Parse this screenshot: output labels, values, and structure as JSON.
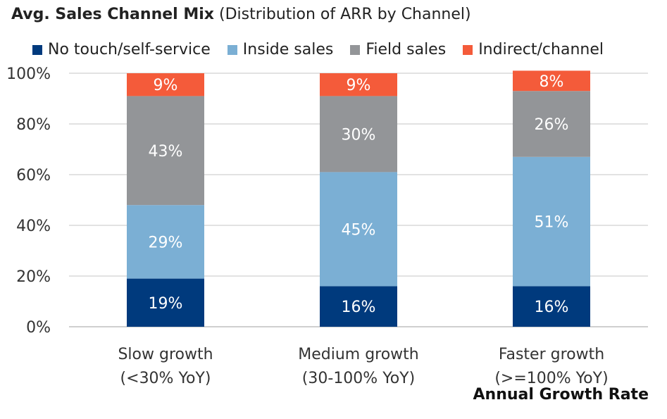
{
  "header": {
    "title_main": "Avg. Sales Channel Mix",
    "title_sub": "(Distribution of ARR by Channel)"
  },
  "chart_data": {
    "type": "bar",
    "stacked": true,
    "title": "Avg. Sales Channel Mix (Distribution of ARR by Channel)",
    "xlabel": "Annual Growth Rate",
    "ylabel": "",
    "ylim": [
      0,
      100
    ],
    "yticks": [
      "0%",
      "20%",
      "40%",
      "60%",
      "80%",
      "100%"
    ],
    "legend_position": "top",
    "grid": true,
    "categories": [
      [
        "Slow growth",
        "(<30% YoY)"
      ],
      [
        "Medium growth",
        "(30-100% YoY)"
      ],
      [
        "Faster growth",
        "(>=100% YoY)"
      ]
    ],
    "series": [
      {
        "name": "No touch/self-service",
        "color": "#003A7D",
        "values": [
          19,
          16,
          16
        ],
        "labels": [
          "19%",
          "16%",
          "16%"
        ]
      },
      {
        "name": "Inside sales",
        "color": "#7BAFD4",
        "values": [
          29,
          45,
          51
        ],
        "labels": [
          "29%",
          "45%",
          "51%"
        ]
      },
      {
        "name": "Field sales",
        "color": "#939598",
        "values": [
          43,
          30,
          26
        ],
        "labels": [
          "43%",
          "30%",
          "26%"
        ]
      },
      {
        "name": "Indirect/channel",
        "color": "#F45B3A",
        "values": [
          9,
          9,
          8
        ],
        "labels": [
          "9%",
          "9%",
          "8%"
        ]
      }
    ]
  }
}
